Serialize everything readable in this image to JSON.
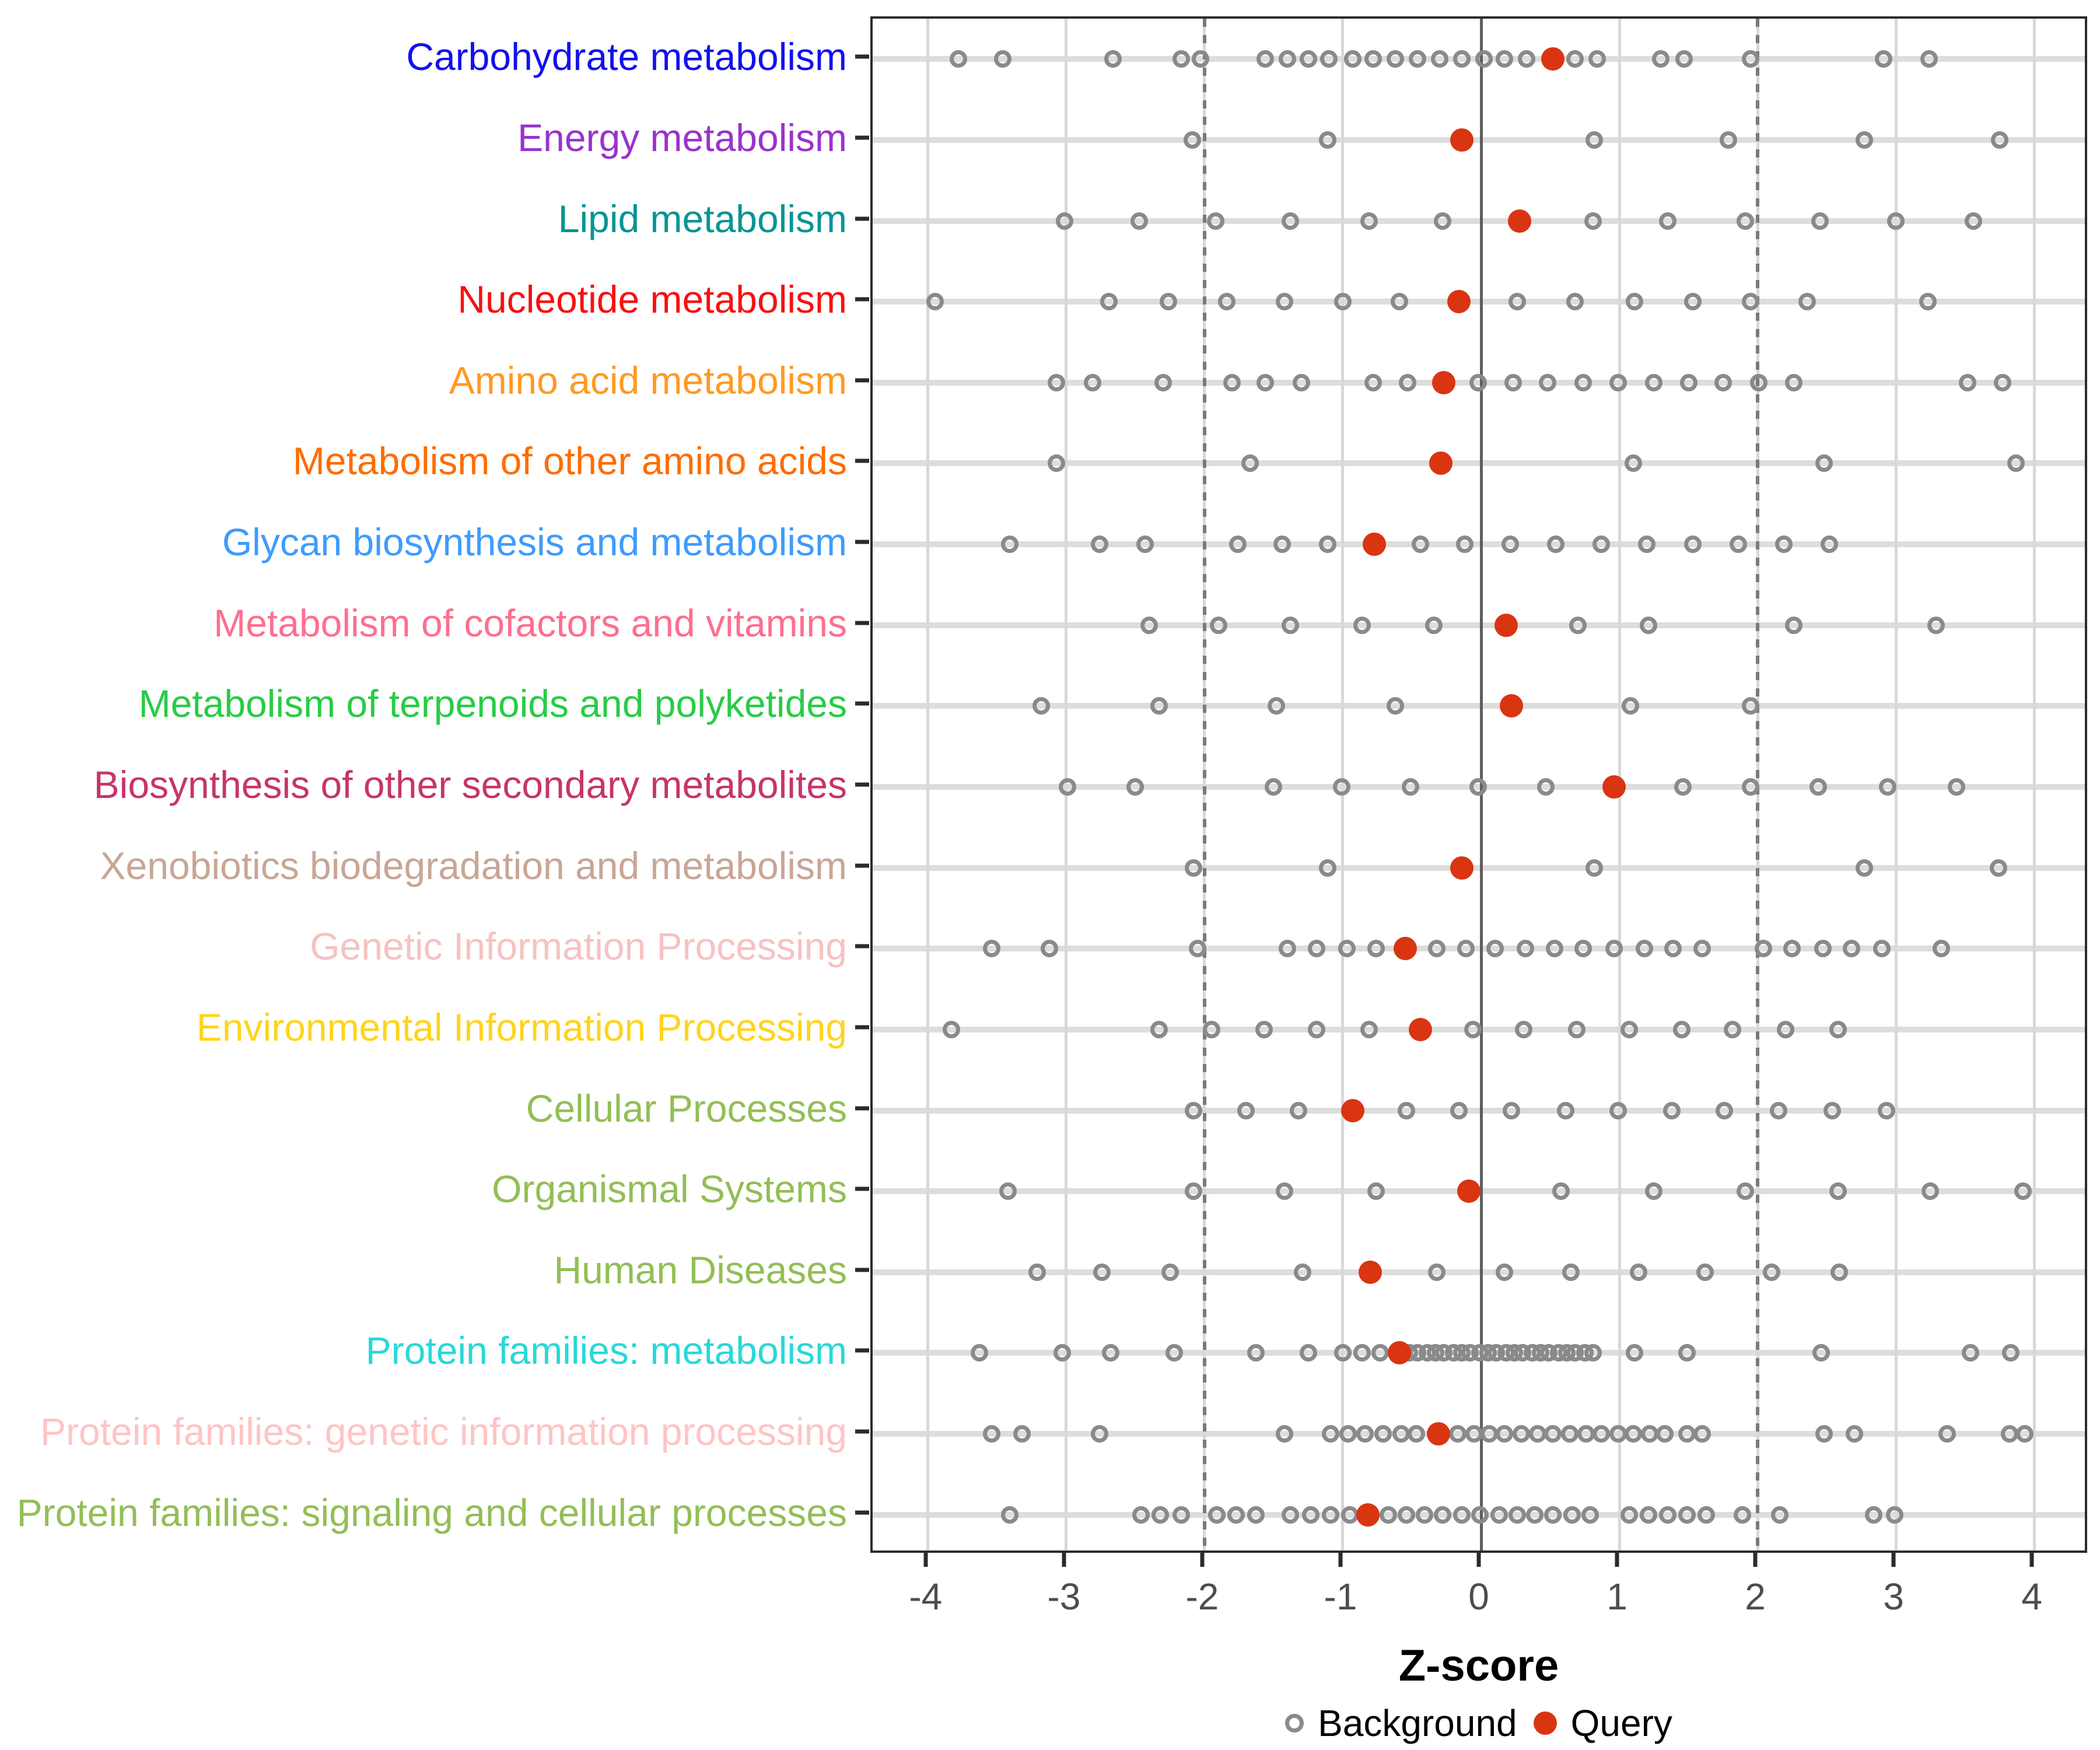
{
  "chart_data": {
    "type": "scatter",
    "title": "",
    "xlabel": "Z-score",
    "xlim": [
      -4.4,
      4.4
    ],
    "x_ticks": [
      -4,
      -3,
      -2,
      -1,
      0,
      1,
      2,
      3,
      4
    ],
    "grid": "major-vertical-and-row-bands",
    "reference_lines": {
      "solid_at": 0,
      "dashed_at": [
        -2,
        2
      ]
    },
    "colors": {
      "query_dot": "#d93511",
      "background_dot_stroke": "#8a8a8a",
      "grid_line": "#d8d8d8",
      "row_band": "#dddddd",
      "zero_line": "#5e5e5e",
      "dashed_line": "#7a7a7a",
      "axis_text": "#4d4d4d",
      "panel_border": "#2b2b2b"
    },
    "legend": [
      {
        "label": "Background",
        "marker": "open-circle",
        "color": "#8a8a8a"
      },
      {
        "label": "Query",
        "marker": "filled-circle",
        "color": "#d93511"
      }
    ],
    "series_note": "Each category row: open gray circles = Background z-scores, filled red circle = Query z-score",
    "categories": [
      {
        "label": "Carbohydrate metabolism",
        "color": "#1111ee",
        "query": 0.52,
        "background": [
          -3.78,
          -3.46,
          -2.66,
          -2.17,
          -2.03,
          -1.56,
          -1.4,
          -1.25,
          -1.1,
          -0.93,
          -0.78,
          -0.62,
          -0.46,
          -0.3,
          -0.14,
          0.02,
          0.17,
          0.33,
          0.68,
          0.84,
          1.3,
          1.47,
          1.95,
          2.91,
          3.24
        ]
      },
      {
        "label": "Energy metabolism",
        "color": "#9933cc",
        "query": -0.14,
        "background": [
          -2.09,
          -1.11,
          0.82,
          1.79,
          2.77,
          3.75
        ]
      },
      {
        "label": "Lipid metabolism",
        "color": "#089494",
        "query": 0.28,
        "background": [
          -3.01,
          -2.47,
          -1.92,
          -1.38,
          -0.81,
          -0.28,
          0.81,
          1.35,
          1.91,
          2.45,
          3.0,
          3.56
        ]
      },
      {
        "label": "Nucleotide metabolism",
        "color": "#f51111",
        "query": -0.16,
        "background": [
          -3.95,
          -2.69,
          -2.26,
          -1.84,
          -1.42,
          -1.0,
          -0.59,
          0.26,
          0.68,
          1.11,
          1.53,
          1.95,
          2.36,
          3.23
        ]
      },
      {
        "label": "Amino acid metabolism",
        "color": "#ff9a22",
        "query": -0.27,
        "background": [
          -3.07,
          -2.81,
          -2.3,
          -1.8,
          -1.56,
          -1.3,
          -0.78,
          -0.53,
          -0.02,
          0.23,
          0.48,
          0.74,
          0.99,
          1.25,
          1.5,
          1.75,
          2.01,
          2.26,
          3.52,
          3.77
        ]
      },
      {
        "label": "Metabolism of other amino acids",
        "color": "#ff6c00",
        "query": -0.29,
        "background": [
          -3.07,
          -1.67,
          1.1,
          2.48,
          3.87
        ]
      },
      {
        "label": "Glycan biosynthesis and metabolism",
        "color": "#3e9bff",
        "query": -0.77,
        "background": [
          -3.41,
          -2.76,
          -2.43,
          -1.76,
          -1.44,
          -1.11,
          -0.44,
          -0.12,
          0.21,
          0.54,
          0.87,
          1.2,
          1.53,
          1.86,
          2.19,
          2.52
        ]
      },
      {
        "label": "Metabolism of cofactors and vitamins",
        "color": "#ff6e8e",
        "query": 0.18,
        "background": [
          -2.4,
          -1.9,
          -1.38,
          -0.86,
          -0.34,
          0.7,
          1.21,
          2.26,
          3.29
        ]
      },
      {
        "label": "Metabolism of terpenoids and polyketides",
        "color": "#28cc46",
        "query": 0.22,
        "background": [
          -3.18,
          -2.33,
          -1.48,
          -0.62,
          1.08,
          1.95
        ]
      },
      {
        "label": "Biosynthesis of other secondary metabolites",
        "color": "#c6356b",
        "query": 0.96,
        "background": [
          -2.99,
          -2.5,
          -1.5,
          -1.01,
          -0.51,
          -0.02,
          0.47,
          1.46,
          1.95,
          2.44,
          2.94,
          3.44
        ]
      },
      {
        "label": "Xenobiotics biodegradation and metabolism",
        "color": "#c8a696",
        "query": -0.14,
        "background": [
          -2.08,
          -1.11,
          0.82,
          2.77,
          3.74
        ]
      },
      {
        "label": "Genetic Information Processing",
        "color": "#f6c2c2",
        "query": -0.55,
        "background": [
          -3.54,
          -3.12,
          -2.05,
          -1.4,
          -1.19,
          -0.97,
          -0.76,
          -0.32,
          -0.11,
          0.1,
          0.32,
          0.53,
          0.74,
          0.96,
          1.18,
          1.39,
          1.6,
          2.04,
          2.25,
          2.47,
          2.68,
          2.9,
          3.33
        ]
      },
      {
        "label": "Environmental Information Processing",
        "color": "#ffd41c",
        "query": -0.44,
        "background": [
          -3.83,
          -2.33,
          -1.95,
          -1.57,
          -1.19,
          -0.81,
          -0.06,
          0.31,
          0.69,
          1.07,
          1.45,
          1.82,
          2.2,
          2.58
        ]
      },
      {
        "label": "Cellular Processes",
        "color": "#93be56",
        "query": -0.93,
        "background": [
          -2.08,
          -1.7,
          -1.32,
          -0.54,
          -0.16,
          0.22,
          0.61,
          0.99,
          1.38,
          1.76,
          2.15,
          2.54,
          2.93
        ]
      },
      {
        "label": "Organismal Systems",
        "color": "#93be56",
        "query": -0.09,
        "background": [
          -3.42,
          -2.08,
          -1.42,
          -0.76,
          0.58,
          1.25,
          1.91,
          2.58,
          3.25,
          3.92
        ]
      },
      {
        "label": "Human Diseases",
        "color": "#93be56",
        "query": -0.8,
        "background": [
          -3.21,
          -2.74,
          -2.25,
          -1.29,
          -0.32,
          0.17,
          0.65,
          1.14,
          1.62,
          2.1,
          2.59
        ]
      },
      {
        "label": "Protein families: metabolism",
        "color": "#29d8d8",
        "query": -0.59,
        "background": [
          -3.63,
          -3.03,
          -2.68,
          -2.22,
          -1.63,
          -1.25,
          -1.0,
          -0.86,
          -0.73,
          -0.52,
          -0.46,
          -0.39,
          -0.33,
          -0.27,
          -0.2,
          -0.14,
          -0.08,
          -0.01,
          0.05,
          0.11,
          0.18,
          0.24,
          0.3,
          0.37,
          0.43,
          0.49,
          0.56,
          0.62,
          0.68,
          0.75,
          0.81,
          1.11,
          1.49,
          2.46,
          3.54,
          3.83
        ]
      },
      {
        "label": "Protein families: genetic information processing",
        "color": "#ffc4c4",
        "query": -0.31,
        "background": [
          -3.54,
          -3.32,
          -2.76,
          -1.42,
          -1.09,
          -0.96,
          -0.84,
          -0.71,
          -0.58,
          -0.47,
          -0.17,
          -0.05,
          0.06,
          0.17,
          0.29,
          0.41,
          0.52,
          0.64,
          0.76,
          0.87,
          0.99,
          1.1,
          1.22,
          1.33,
          1.49,
          1.6,
          2.48,
          2.7,
          3.37,
          3.82,
          3.93
        ]
      },
      {
        "label": "Protein families: signaling and cellular processes",
        "color": "#93be56",
        "query": -0.82,
        "background": [
          -3.41,
          -2.46,
          -2.32,
          -2.17,
          -1.91,
          -1.77,
          -1.63,
          -1.38,
          -1.23,
          -1.09,
          -0.95,
          -0.67,
          -0.54,
          -0.41,
          -0.28,
          -0.14,
          -0.01,
          0.13,
          0.26,
          0.39,
          0.52,
          0.66,
          0.79,
          1.07,
          1.21,
          1.35,
          1.49,
          1.63,
          1.89,
          2.16,
          2.84,
          2.99
        ]
      }
    ]
  }
}
